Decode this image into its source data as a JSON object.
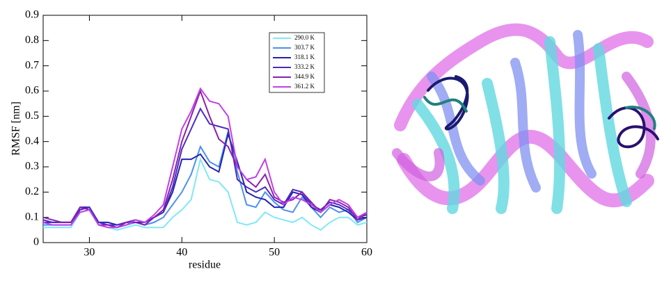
{
  "chart_data": {
    "type": "line",
    "ylabel": "RMSF [nm]",
    "xlabel": "residue",
    "x": [
      25,
      26,
      27,
      28,
      29,
      30,
      31,
      32,
      33,
      34,
      35,
      36,
      37,
      38,
      39,
      40,
      41,
      42,
      43,
      44,
      45,
      46,
      47,
      48,
      49,
      50,
      51,
      52,
      53,
      54,
      55,
      56,
      57,
      58,
      59,
      60
    ],
    "xlim": [
      25,
      60
    ],
    "xticks": [
      30,
      40,
      50,
      60
    ],
    "ylim": [
      0,
      0.9
    ],
    "yticks": [
      0,
      0.1,
      0.2,
      0.3,
      0.4,
      0.5,
      0.6,
      0.7,
      0.8,
      0.9
    ],
    "legend": "upper right",
    "series": [
      {
        "name": "290.0 K",
        "color": "#7fe8f5",
        "values": [
          0.06,
          0.06,
          0.06,
          0.06,
          0.12,
          0.13,
          0.07,
          0.06,
          0.05,
          0.06,
          0.07,
          0.06,
          0.06,
          0.06,
          0.1,
          0.13,
          0.17,
          0.33,
          0.25,
          0.24,
          0.2,
          0.08,
          0.07,
          0.08,
          0.12,
          0.1,
          0.09,
          0.08,
          0.1,
          0.07,
          0.05,
          0.08,
          0.1,
          0.1,
          0.07,
          0.08
        ]
      },
      {
        "name": "303.7 K",
        "color": "#4d8ff0",
        "values": [
          0.07,
          0.07,
          0.07,
          0.07,
          0.13,
          0.14,
          0.08,
          0.07,
          0.06,
          0.07,
          0.08,
          0.07,
          0.08,
          0.1,
          0.15,
          0.2,
          0.27,
          0.38,
          0.32,
          0.3,
          0.44,
          0.28,
          0.15,
          0.14,
          0.2,
          0.16,
          0.13,
          0.12,
          0.18,
          0.14,
          0.1,
          0.14,
          0.12,
          0.13,
          0.08,
          0.1
        ]
      },
      {
        "name": "318.1 K",
        "color": "#2222b0",
        "values": [
          0.08,
          0.08,
          0.08,
          0.08,
          0.14,
          0.14,
          0.08,
          0.08,
          0.07,
          0.08,
          0.08,
          0.08,
          0.1,
          0.12,
          0.2,
          0.33,
          0.33,
          0.35,
          0.3,
          0.28,
          0.43,
          0.32,
          0.2,
          0.18,
          0.17,
          0.14,
          0.14,
          0.2,
          0.19,
          0.14,
          0.12,
          0.15,
          0.14,
          0.12,
          0.09,
          0.1
        ]
      },
      {
        "name": "333.2 K",
        "color": "#4a2cc0",
        "values": [
          0.09,
          0.08,
          0.08,
          0.08,
          0.13,
          0.14,
          0.08,
          0.07,
          0.07,
          0.08,
          0.09,
          0.08,
          0.1,
          0.12,
          0.22,
          0.37,
          0.45,
          0.53,
          0.47,
          0.46,
          0.45,
          0.25,
          0.22,
          0.2,
          0.22,
          0.17,
          0.15,
          0.21,
          0.2,
          0.15,
          0.13,
          0.16,
          0.15,
          0.13,
          0.1,
          0.11
        ]
      },
      {
        "name": "344.9 K",
        "color": "#8a1fb0",
        "values": [
          0.1,
          0.09,
          0.08,
          0.08,
          0.14,
          0.13,
          0.07,
          0.07,
          0.06,
          0.08,
          0.08,
          0.07,
          0.1,
          0.13,
          0.25,
          0.4,
          0.5,
          0.6,
          0.5,
          0.41,
          0.38,
          0.3,
          0.25,
          0.22,
          0.27,
          0.18,
          0.16,
          0.17,
          0.2,
          0.16,
          0.12,
          0.17,
          0.16,
          0.14,
          0.09,
          0.12
        ]
      },
      {
        "name": "361.2 K",
        "color": "#c040e8",
        "values": [
          0.08,
          0.07,
          0.07,
          0.07,
          0.12,
          0.13,
          0.07,
          0.06,
          0.06,
          0.07,
          0.09,
          0.08,
          0.11,
          0.15,
          0.3,
          0.45,
          0.52,
          0.61,
          0.56,
          0.55,
          0.5,
          0.3,
          0.25,
          0.26,
          0.33,
          0.2,
          0.15,
          0.18,
          0.17,
          0.15,
          0.12,
          0.15,
          0.17,
          0.15,
          0.1,
          0.12
        ]
      }
    ]
  }
}
